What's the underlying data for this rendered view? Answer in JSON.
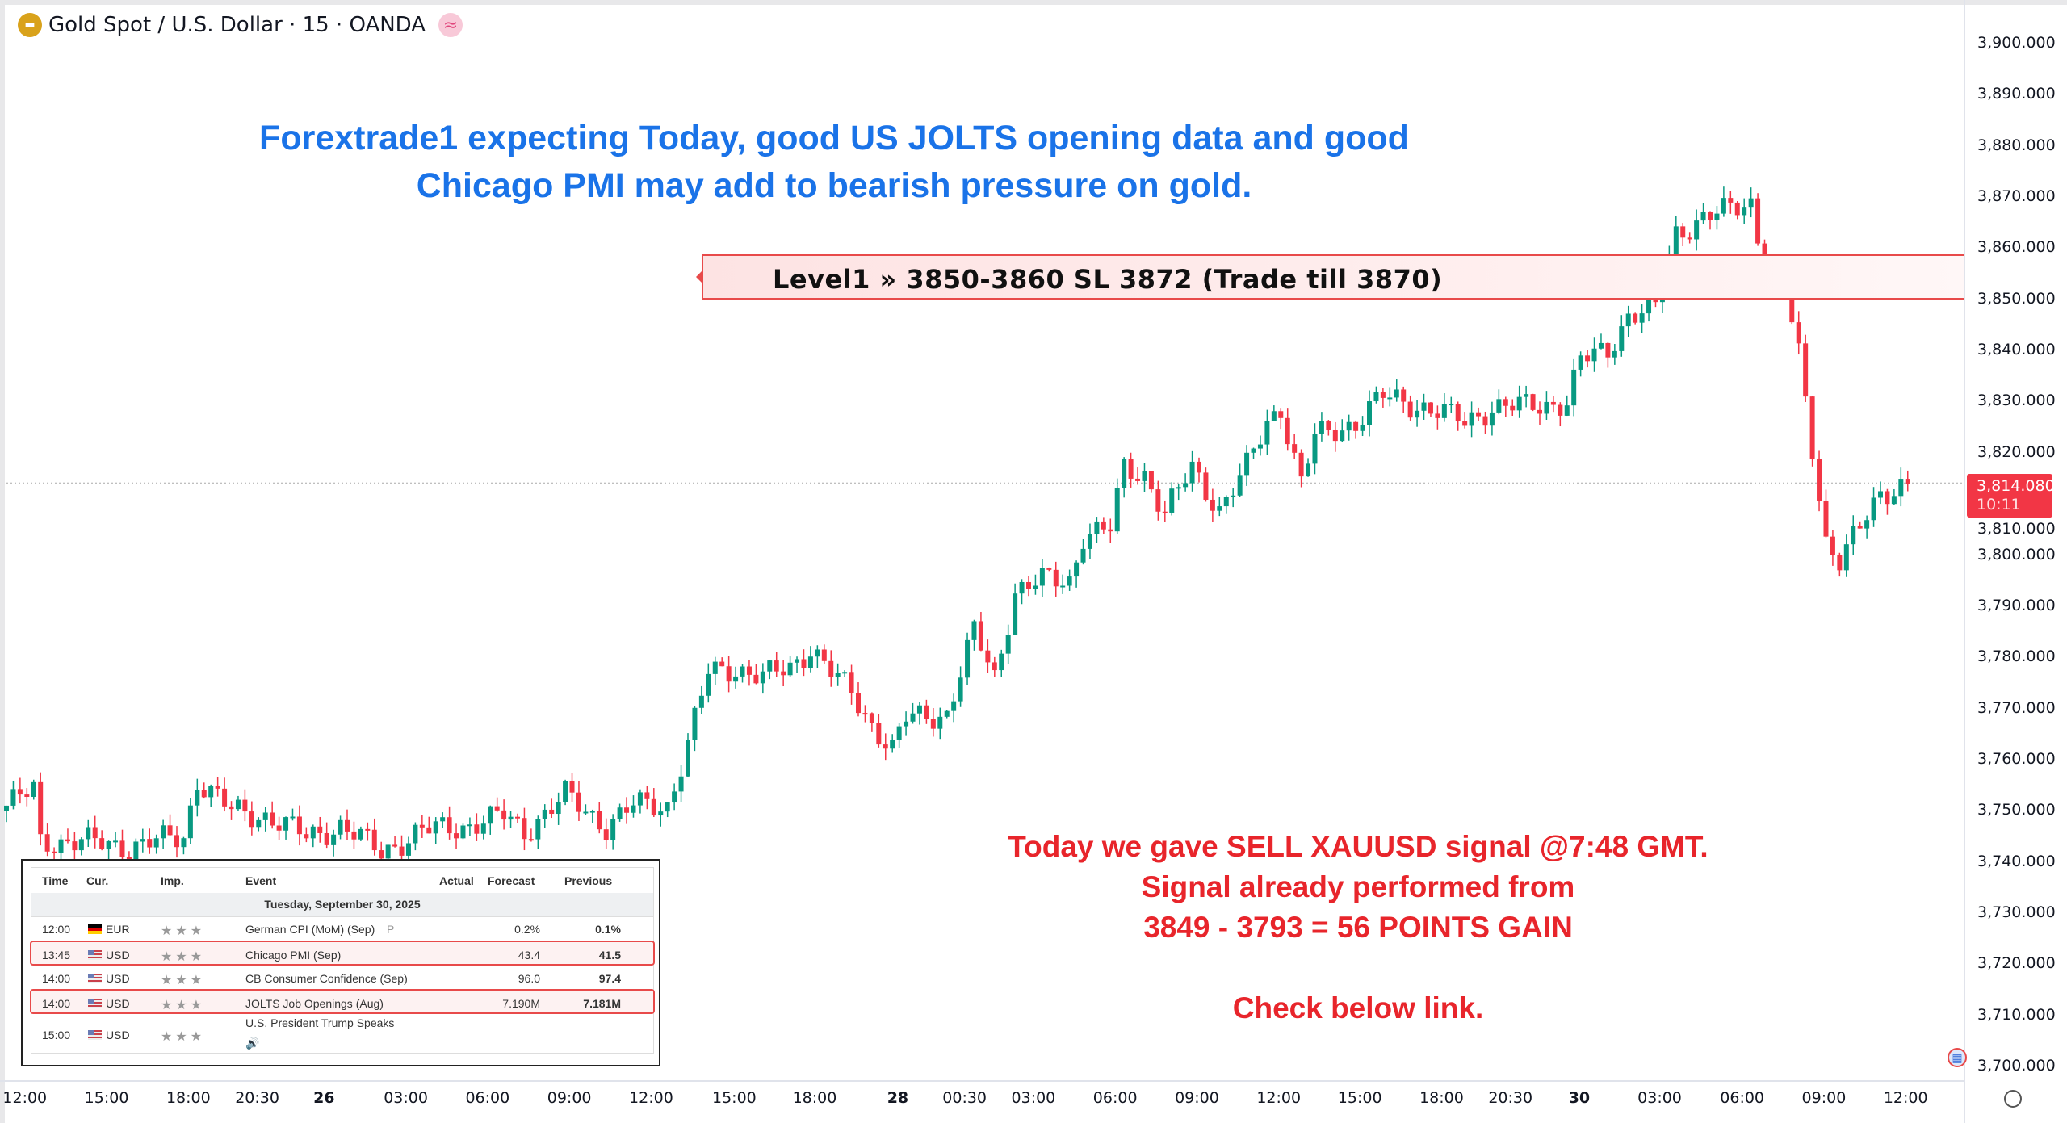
{
  "header": {
    "title": "Gold Spot / U.S. Dollar · 15 · OANDA",
    "icon": "gold-bars-icon",
    "badge_icon": "approx-wave-icon"
  },
  "annotations": {
    "blue_lines": [
      "Forextrade1 expecting Today, good US JOLTS opening data and good",
      "Chicago PMI may add to bearish pressure on gold."
    ],
    "level_label": "Level1 » 3850-3860 SL 3872 (Trade till 3870)",
    "red_lines": [
      "Today we gave SELL XAUUSD signal @7:48 GMT.",
      "Signal already performed from",
      "3849 - 3793 = 56 POINTS GAIN",
      "",
      "Check below link."
    ]
  },
  "current_price": {
    "value": "3,814.080",
    "countdown": "10:11",
    "price": 3814.08
  },
  "colors": {
    "up": "#089981",
    "down": "#f23645",
    "blue_text": "#1a73e8",
    "red_text": "#e8252b",
    "level": "#e84a4a"
  },
  "calendar": {
    "headers": {
      "time": "Time",
      "cur": "Cur.",
      "imp": "Imp.",
      "event": "Event",
      "actual": "Actual",
      "forecast": "Forecast",
      "previous": "Previous"
    },
    "date": "Tuesday, September 30, 2025",
    "rows": [
      {
        "time": "12:00",
        "flag": "de",
        "cur": "EUR",
        "stars": "★★★",
        "event": "German CPI (MoM) (Sep)",
        "note": "P",
        "actual": "",
        "forecast": "0.2%",
        "previous": "0.1%",
        "highlight": false
      },
      {
        "time": "13:45",
        "flag": "us",
        "cur": "USD",
        "stars": "★★★",
        "event": "Chicago PMI (Sep)",
        "note": "",
        "actual": "",
        "forecast": "43.4",
        "previous": "41.5",
        "highlight": true
      },
      {
        "time": "14:00",
        "flag": "us",
        "cur": "USD",
        "stars": "★★★",
        "event": "CB Consumer Confidence (Sep)",
        "note": "",
        "actual": "",
        "forecast": "96.0",
        "previous": "97.4",
        "highlight": false
      },
      {
        "time": "14:00",
        "flag": "us",
        "cur": "USD",
        "stars": "★★★",
        "event": "JOLTS Job Openings (Aug)",
        "note": "",
        "actual": "",
        "forecast": "7.190M",
        "previous": "7.181M",
        "highlight": true
      },
      {
        "time": "15:00",
        "flag": "us",
        "cur": "USD",
        "stars": "★★★",
        "event": "U.S. President Trump Speaks",
        "note": "🔊",
        "actual": "",
        "forecast": "",
        "previous": "",
        "highlight": false
      }
    ]
  },
  "chart_data": {
    "type": "candlestick",
    "title": "Gold Spot / U.S. Dollar · 15 · OANDA",
    "ylim": [
      3700,
      3900
    ],
    "y_ticks": [
      "3,900.000",
      "3,890.000",
      "3,880.000",
      "3,870.000",
      "3,860.000",
      "3,850.000",
      "3,840.000",
      "3,830.000",
      "3,820.000",
      "3,810.000",
      "3,800.000",
      "3,790.000",
      "3,780.000",
      "3,770.000",
      "3,760.000",
      "3,750.000",
      "3,740.000",
      "3,730.000",
      "3,720.000",
      "3,710.000",
      "3,700.000"
    ],
    "x_ticks": [
      {
        "label": "12:00",
        "i": 2.7
      },
      {
        "label": "15:00",
        "i": 14.7
      },
      {
        "label": "18:00",
        "i": 26.7
      },
      {
        "label": "20:30",
        "i": 36.8
      },
      {
        "label": "26",
        "i": 46.6,
        "bold": true
      },
      {
        "label": "03:00",
        "i": 58.6
      },
      {
        "label": "06:00",
        "i": 70.6
      },
      {
        "label": "09:00",
        "i": 82.6
      },
      {
        "label": "12:00",
        "i": 94.6
      },
      {
        "label": "15:00",
        "i": 106.8
      },
      {
        "label": "18:00",
        "i": 118.6
      },
      {
        "label": "28",
        "i": 130.8,
        "bold": true
      },
      {
        "label": "00:30",
        "i": 140.6
      },
      {
        "label": "03:00",
        "i": 150.7
      },
      {
        "label": "06:00",
        "i": 162.7
      },
      {
        "label": "09:00",
        "i": 174.7
      },
      {
        "label": "12:00",
        "i": 186.7
      },
      {
        "label": "15:00",
        "i": 198.6
      },
      {
        "label": "18:00",
        "i": 210.6
      },
      {
        "label": "20:30",
        "i": 220.7
      },
      {
        "label": "30",
        "i": 230.8,
        "bold": true
      },
      {
        "label": "03:00",
        "i": 242.6
      },
      {
        "label": "06:00",
        "i": 254.7
      },
      {
        "label": "09:00",
        "i": 266.7
      },
      {
        "label": "12:00",
        "i": 278.7
      }
    ],
    "level_zone": [
      3850,
      3860
    ],
    "close_anchors": [
      [
        0,
        3751
      ],
      [
        4,
        3754
      ],
      [
        5,
        3744
      ],
      [
        11,
        3744
      ],
      [
        18,
        3743
      ],
      [
        26,
        3745
      ],
      [
        28,
        3756
      ],
      [
        33,
        3750
      ],
      [
        38,
        3749
      ],
      [
        44,
        3745
      ],
      [
        49,
        3747
      ],
      [
        55,
        3742
      ],
      [
        61,
        3746
      ],
      [
        67,
        3747
      ],
      [
        73,
        3749
      ],
      [
        76,
        3746
      ],
      [
        82,
        3753
      ],
      [
        88,
        3747
      ],
      [
        92,
        3751
      ],
      [
        97,
        3751
      ],
      [
        100,
        3763
      ],
      [
        103,
        3777
      ],
      [
        107,
        3778
      ],
      [
        111,
        3776
      ],
      [
        115,
        3778
      ],
      [
        118,
        3782
      ],
      [
        121,
        3777
      ],
      [
        124,
        3773
      ],
      [
        127,
        3767
      ],
      [
        130,
        3762
      ],
      [
        132,
        3768
      ],
      [
        138,
        3769
      ],
      [
        142,
        3785
      ],
      [
        145,
        3776
      ],
      [
        148,
        3793
      ],
      [
        152,
        3795
      ],
      [
        156,
        3795
      ],
      [
        158,
        3804
      ],
      [
        162,
        3805
      ],
      [
        164,
        3817
      ],
      [
        167,
        3816
      ],
      [
        170,
        3808
      ],
      [
        174,
        3817
      ],
      [
        178,
        3809
      ],
      [
        182,
        3817
      ],
      [
        185,
        3826
      ],
      [
        187,
        3829
      ],
      [
        190,
        3814
      ],
      [
        192,
        3823
      ],
      [
        198,
        3826
      ],
      [
        202,
        3831
      ],
      [
        208,
        3829
      ],
      [
        214,
        3826
      ],
      [
        218,
        3829
      ],
      [
        223,
        3829
      ],
      [
        229,
        3830
      ],
      [
        231,
        3838
      ],
      [
        235,
        3840
      ],
      [
        238,
        3847
      ],
      [
        242,
        3848
      ],
      [
        245,
        3863
      ],
      [
        249,
        3866
      ],
      [
        252,
        3867
      ],
      [
        256,
        3869
      ],
      [
        258,
        3856
      ],
      [
        261,
        3852
      ],
      [
        263,
        3839
      ],
      [
        265,
        3821
      ],
      [
        267,
        3803
      ],
      [
        269,
        3799
      ],
      [
        272,
        3805
      ],
      [
        275,
        3812
      ],
      [
        278,
        3814
      ],
      [
        279,
        3814
      ]
    ]
  }
}
